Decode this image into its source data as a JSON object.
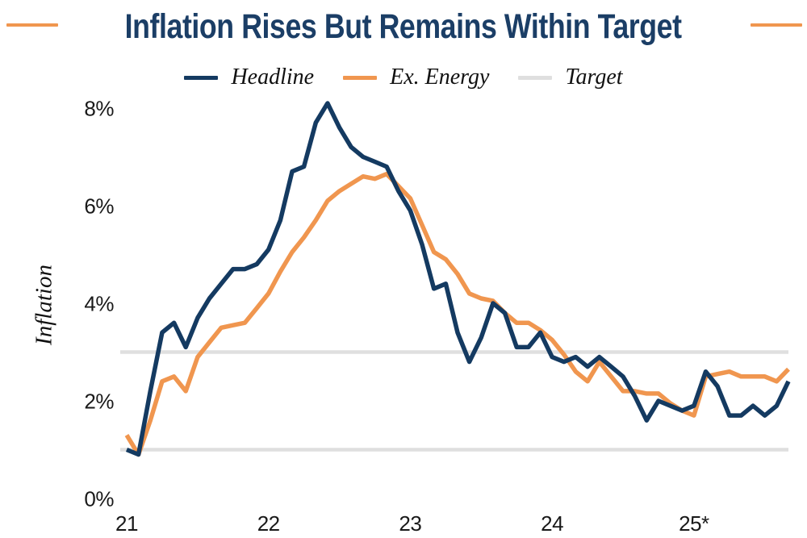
{
  "header": {
    "title": "Inflation Rises But Remains Within Target",
    "title_color": "#1b3e66",
    "accent_color": "#f0964f"
  },
  "chart_data": {
    "type": "line",
    "title": "Inflation Rises But Remains Within Target",
    "xlabel": "",
    "ylabel": "Inflation",
    "ylim": [
      0,
      8.5
    ],
    "grid": false,
    "legend_position": "top",
    "x_unit": "month",
    "x_ticks": {
      "labels": [
        "21",
        "22",
        "23",
        "24",
        "25*"
      ],
      "month_index": [
        0,
        12,
        24,
        36,
        48
      ]
    },
    "y_ticks": {
      "labels": [
        "0%",
        "2%",
        "4%",
        "6%",
        "8%"
      ],
      "values": [
        0,
        2,
        4,
        6,
        8
      ]
    },
    "target_band": [
      1,
      3
    ],
    "series": [
      {
        "name": "Headline",
        "color": "#143a61",
        "values": [
          1.0,
          0.9,
          2.2,
          3.4,
          3.6,
          3.1,
          3.7,
          4.1,
          4.4,
          4.7,
          4.7,
          4.8,
          5.1,
          5.7,
          6.7,
          6.8,
          7.7,
          8.1,
          7.6,
          7.2,
          7.0,
          6.9,
          6.8,
          6.3,
          5.9,
          5.2,
          4.3,
          4.4,
          3.4,
          2.8,
          3.3,
          4.0,
          3.8,
          3.1,
          3.1,
          3.4,
          2.9,
          2.8,
          2.9,
          2.7,
          2.9,
          2.7,
          2.5,
          2.1,
          1.6,
          2.0,
          1.9,
          1.8,
          1.9,
          2.6,
          2.3,
          1.7,
          1.7,
          1.9,
          1.7,
          1.9,
          2.4
        ]
      },
      {
        "name": "Ex. Energy",
        "color": "#f0964f",
        "values": [
          1.3,
          0.9,
          1.6,
          2.4,
          2.5,
          2.2,
          2.9,
          3.2,
          3.5,
          3.55,
          3.6,
          3.9,
          4.2,
          4.65,
          5.05,
          5.35,
          5.7,
          6.1,
          6.3,
          6.45,
          6.6,
          6.55,
          6.65,
          6.4,
          6.15,
          5.6,
          5.05,
          4.9,
          4.6,
          4.2,
          4.1,
          4.05,
          3.8,
          3.6,
          3.6,
          3.45,
          3.25,
          2.95,
          2.6,
          2.4,
          2.8,
          2.5,
          2.2,
          2.2,
          2.15,
          2.15,
          1.95,
          1.8,
          1.7,
          2.5,
          2.55,
          2.6,
          2.5,
          2.5,
          2.5,
          2.4,
          2.65
        ]
      },
      {
        "name": "Target",
        "color": "#dfdfdf",
        "band": [
          1,
          3
        ]
      }
    ]
  }
}
